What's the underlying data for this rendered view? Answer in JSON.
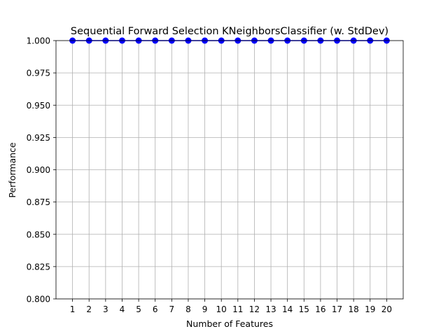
{
  "chart_data": {
    "type": "line",
    "title": "Sequential Forward Selection KNeighborsClassifier (w. StdDev)",
    "xlabel": "Number of Features",
    "ylabel": "Performance",
    "x": [
      1,
      2,
      3,
      4,
      5,
      6,
      7,
      8,
      9,
      10,
      11,
      12,
      13,
      14,
      15,
      16,
      17,
      18,
      19,
      20
    ],
    "x_tick_labels": [
      "1",
      "2",
      "3",
      "4",
      "5",
      "6",
      "7",
      "8",
      "9",
      "10",
      "11",
      "12",
      "13",
      "14",
      "15",
      "16",
      "17",
      "18",
      "19",
      "20"
    ],
    "series": [
      {
        "name": "Performance",
        "color": "#0000ff",
        "marker": "circle",
        "values": [
          1.0,
          1.0,
          1.0,
          1.0,
          1.0,
          1.0,
          1.0,
          1.0,
          1.0,
          1.0,
          1.0,
          1.0,
          1.0,
          1.0,
          1.0,
          1.0,
          1.0,
          1.0,
          1.0,
          1.0
        ]
      }
    ],
    "xlim": [
      0,
      21
    ],
    "ylim": [
      0.8,
      1.0
    ],
    "y_ticks": [
      0.8,
      0.825,
      0.85,
      0.875,
      0.9,
      0.925,
      0.95,
      0.975,
      1.0
    ],
    "y_tick_labels": [
      "0.800",
      "0.825",
      "0.850",
      "0.875",
      "0.900",
      "0.925",
      "0.950",
      "0.975",
      "1.000"
    ],
    "grid": true
  }
}
